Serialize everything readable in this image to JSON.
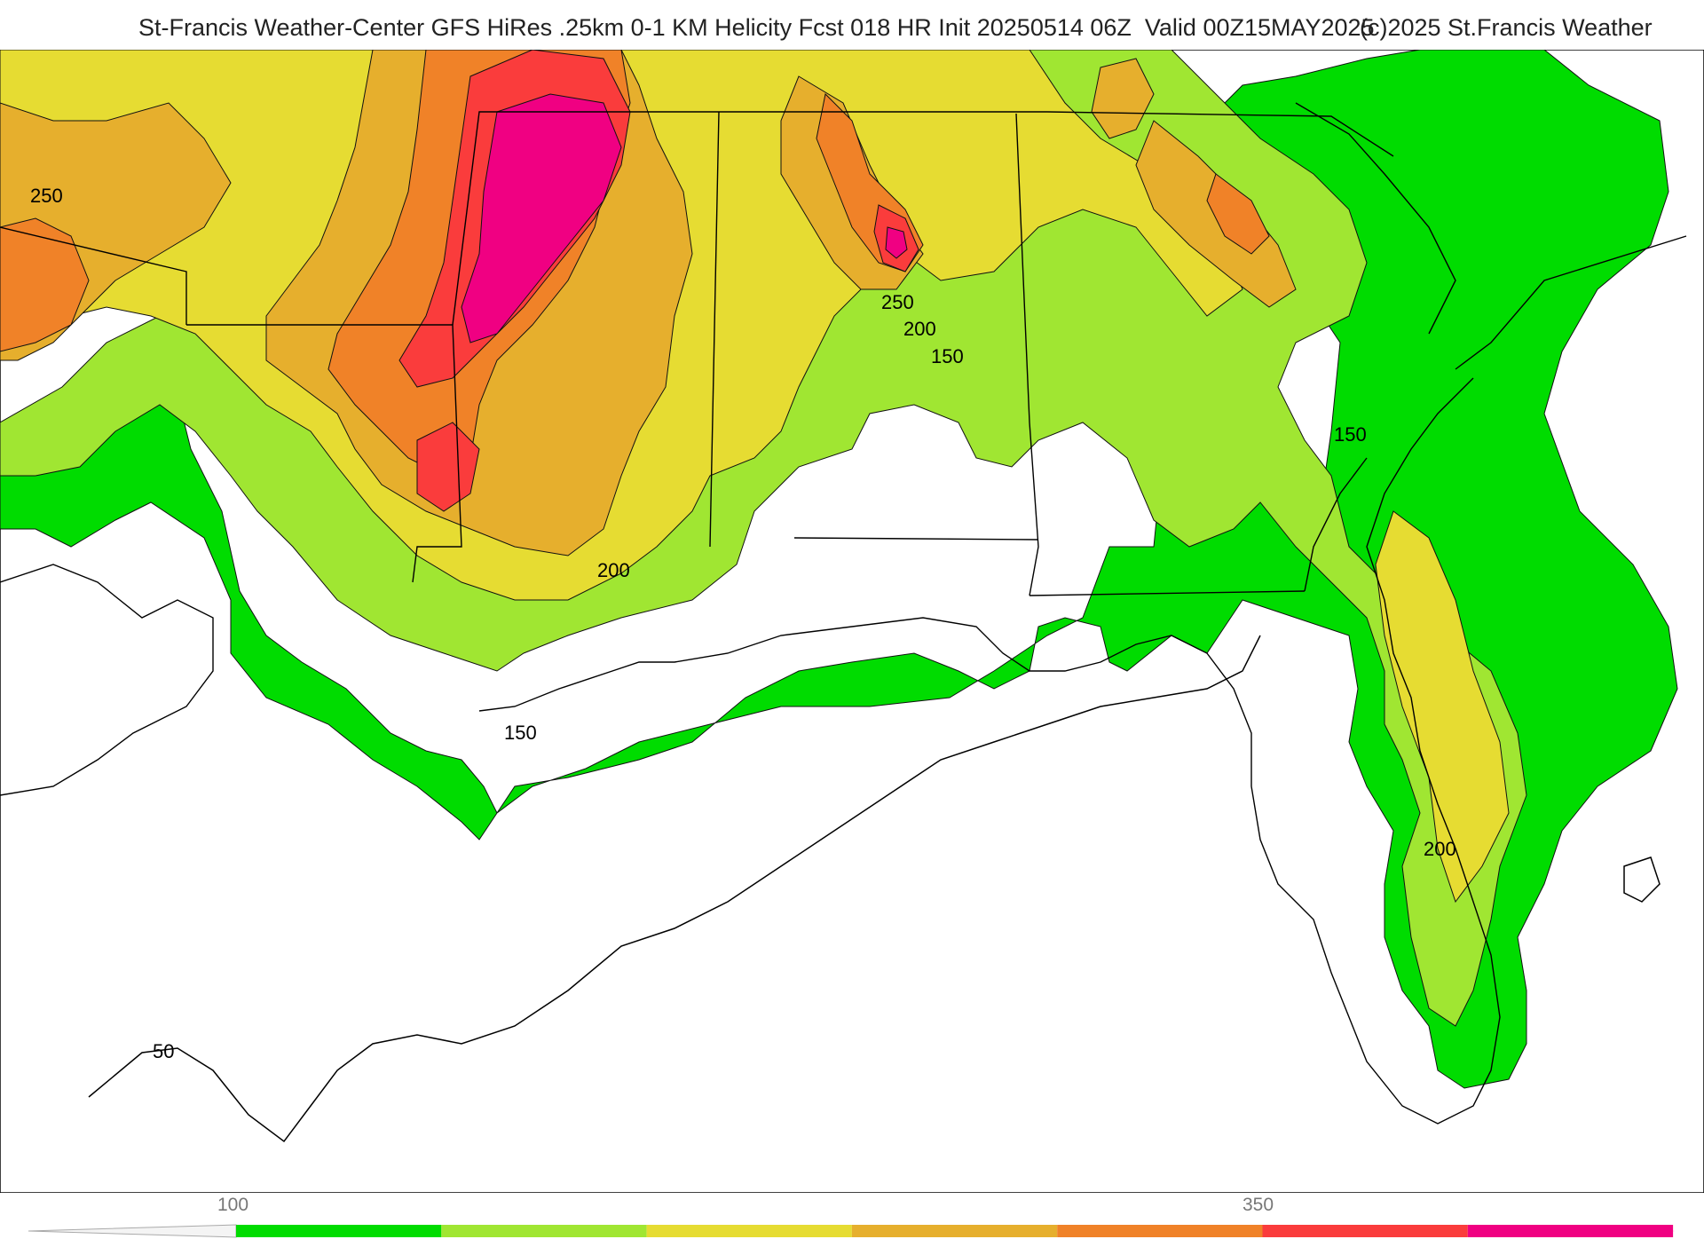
{
  "title": {
    "main": "St-Francis Weather-Center GFS HiRes .25km 0-1 KM Helicity Fcst 018 HR Init 20250514 06Z  Valid 00Z15MAY2025",
    "copyright": "(c)2025 St.Francis Weather"
  },
  "map": {
    "contour_labels": [
      {
        "id": "tx-250",
        "text": "250"
      },
      {
        "id": "al-250",
        "text": "250"
      },
      {
        "id": "al-200",
        "text": "200"
      },
      {
        "id": "al-150",
        "text": "150"
      },
      {
        "id": "sc-150",
        "text": "150"
      },
      {
        "id": "ms-200",
        "text": "200"
      },
      {
        "id": "gulf-150",
        "text": "150"
      },
      {
        "id": "fl-200",
        "text": "200"
      },
      {
        "id": "gulf-50",
        "text": "50"
      }
    ]
  },
  "legend": {
    "tick_labels": [
      "100",
      "350"
    ],
    "colors": [
      "#00dc00",
      "#a0e632",
      "#e6dc32",
      "#e6af2d",
      "#f08228",
      "#fa3c3c",
      "#f00082"
    ]
  }
}
